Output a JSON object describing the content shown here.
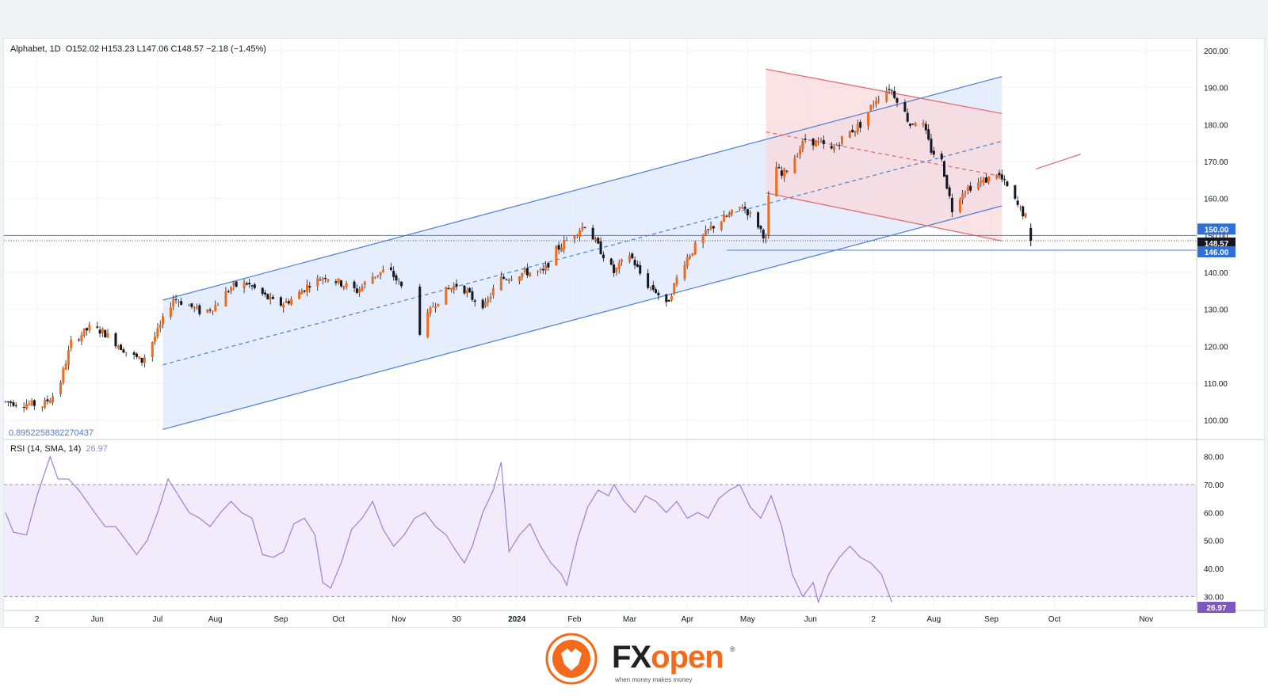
{
  "header": {
    "symbol": "Alphabet",
    "interval": "1D",
    "ohlc": "O152.02  H153.23  L147.06  C148.57  −2.18 (−1.45%)",
    "channel_label": "0.8952258382270437"
  },
  "rsi": {
    "title": "RSI (14, SMA, 14)",
    "value": "26.97",
    "upper": 70,
    "lower": 30,
    "ticks": [
      "80.00",
      "70.00",
      "60.00",
      "50.00",
      "40.00",
      "30.00"
    ]
  },
  "badges": {
    "level_150": "150.00",
    "price": "148.57",
    "level_146": "146.00",
    "rsi": "26.97"
  },
  "brand": {
    "name_a": "FX",
    "name_b": "open",
    "tagline": "when money makes money",
    "reg": "®"
  },
  "colors": {
    "bull": "#f26b1d",
    "bear": "#131722",
    "channel_blue": "#4a7fd4",
    "channel_red": "#e06470",
    "rsi_line": "#9b7fd6",
    "rsi_band": "#ede6fa"
  },
  "chart_data": {
    "type": "candlestick",
    "yaxis_ticks": [
      "200.00",
      "190.00",
      "180.00",
      "170.00",
      "160.00",
      "150.00",
      "140.00",
      "130.00",
      "120.00",
      "110.00",
      "100.00"
    ],
    "ylim": [
      95,
      201.5
    ],
    "xaxis_ticks": [
      "2",
      "Jun",
      "Jul",
      "Aug",
      "Sep",
      "Oct",
      "Nov",
      "30",
      "2024",
      "Feb",
      "Mar",
      "Apr",
      "May",
      "Jun",
      "2",
      "Aug",
      "Sep",
      "Oct",
      "Nov"
    ],
    "last": {
      "open": 152.02,
      "high": 153.23,
      "low": 147.06,
      "close": 148.57
    },
    "price_path": [
      [
        0,
        105
      ],
      [
        14,
        104
      ],
      [
        20,
        108
      ],
      [
        25,
        121
      ],
      [
        32,
        125
      ],
      [
        37,
        124
      ],
      [
        42,
        121
      ],
      [
        47,
        118
      ],
      [
        52,
        116
      ],
      [
        58,
        124
      ],
      [
        64,
        133
      ],
      [
        70,
        131
      ],
      [
        75,
        129
      ],
      [
        80,
        131
      ],
      [
        86,
        136
      ],
      [
        92,
        137
      ],
      [
        98,
        134
      ],
      [
        104,
        131
      ],
      [
        110,
        133
      ],
      [
        116,
        137
      ],
      [
        122,
        139
      ],
      [
        128,
        137
      ],
      [
        134,
        135
      ],
      [
        140,
        139
      ],
      [
        146,
        141
      ],
      [
        152,
        135
      ],
      [
        158,
        124
      ],
      [
        163,
        131
      ],
      [
        168,
        135
      ],
      [
        173,
        137
      ],
      [
        178,
        133
      ],
      [
        183,
        131
      ],
      [
        188,
        138
      ],
      [
        193,
        139
      ],
      [
        198,
        140
      ],
      [
        205,
        140
      ],
      [
        210,
        146
      ],
      [
        216,
        150
      ],
      [
        221,
        153
      ],
      [
        226,
        147
      ],
      [
        232,
        140
      ],
      [
        238,
        145
      ],
      [
        244,
        137
      ],
      [
        248,
        135
      ],
      [
        252,
        131
      ],
      [
        258,
        142
      ],
      [
        264,
        148
      ],
      [
        269,
        152
      ],
      [
        275,
        155
      ],
      [
        281,
        158
      ],
      [
        286,
        154
      ],
      [
        290,
        149
      ],
      [
        292,
        171
      ],
      [
        296,
        166
      ],
      [
        300,
        170
      ],
      [
        305,
        176
      ],
      [
        310,
        175
      ],
      [
        315,
        173
      ],
      [
        320,
        177
      ],
      [
        326,
        180
      ],
      [
        332,
        187
      ],
      [
        337,
        190
      ],
      [
        341,
        186
      ],
      [
        345,
        180
      ],
      [
        349,
        182
      ],
      [
        353,
        173
      ],
      [
        357,
        170
      ],
      [
        361,
        157
      ],
      [
        365,
        162
      ],
      [
        370,
        164
      ],
      [
        374,
        165
      ],
      [
        378,
        167
      ],
      [
        382,
        163
      ],
      [
        386,
        158
      ],
      [
        389,
        155
      ],
      [
        391,
        149
      ]
    ],
    "rsi_path": [
      [
        0,
        60
      ],
      [
        3,
        53
      ],
      [
        8,
        52
      ],
      [
        12,
        66
      ],
      [
        17,
        80
      ],
      [
        20,
        72
      ],
      [
        24,
        72
      ],
      [
        28,
        68
      ],
      [
        34,
        60
      ],
      [
        38,
        55
      ],
      [
        42,
        55
      ],
      [
        46,
        50
      ],
      [
        50,
        45
      ],
      [
        54,
        50
      ],
      [
        58,
        60
      ],
      [
        62,
        72
      ],
      [
        66,
        66
      ],
      [
        70,
        60
      ],
      [
        74,
        58
      ],
      [
        78,
        55
      ],
      [
        82,
        60
      ],
      [
        86,
        64
      ],
      [
        90,
        60
      ],
      [
        94,
        58
      ],
      [
        98,
        45
      ],
      [
        102,
        44
      ],
      [
        106,
        46
      ],
      [
        110,
        56
      ],
      [
        114,
        58
      ],
      [
        118,
        52
      ],
      [
        121,
        35
      ],
      [
        124,
        33
      ],
      [
        128,
        42
      ],
      [
        132,
        54
      ],
      [
        136,
        58
      ],
      [
        140,
        64
      ],
      [
        144,
        54
      ],
      [
        148,
        48
      ],
      [
        152,
        52
      ],
      [
        156,
        58
      ],
      [
        160,
        60
      ],
      [
        164,
        55
      ],
      [
        168,
        52
      ],
      [
        172,
        46
      ],
      [
        175,
        42
      ],
      [
        178,
        48
      ],
      [
        182,
        60
      ],
      [
        186,
        68
      ],
      [
        189,
        78
      ],
      [
        192,
        46
      ],
      [
        196,
        52
      ],
      [
        200,
        56
      ],
      [
        204,
        48
      ],
      [
        208,
        42
      ],
      [
        212,
        38
      ],
      [
        214,
        34
      ],
      [
        218,
        50
      ],
      [
        222,
        62
      ],
      [
        226,
        68
      ],
      [
        230,
        66
      ],
      [
        232,
        70
      ],
      [
        236,
        64
      ],
      [
        240,
        60
      ],
      [
        244,
        66
      ],
      [
        248,
        64
      ],
      [
        252,
        60
      ],
      [
        256,
        64
      ],
      [
        260,
        58
      ],
      [
        264,
        60
      ],
      [
        268,
        58
      ],
      [
        272,
        65
      ],
      [
        276,
        68
      ],
      [
        280,
        70
      ],
      [
        284,
        62
      ],
      [
        288,
        58
      ],
      [
        292,
        66
      ],
      [
        296,
        55
      ],
      [
        300,
        38
      ],
      [
        304,
        30
      ],
      [
        308,
        35
      ],
      [
        310,
        28
      ],
      [
        314,
        38
      ],
      [
        318,
        44
      ],
      [
        322,
        48
      ],
      [
        326,
        44
      ],
      [
        330,
        42
      ],
      [
        334,
        38
      ],
      [
        338,
        28
      ]
    ],
    "channels": {
      "blue_upper": [
        [
          60,
          132.5
        ],
        [
          380,
          193
        ]
      ],
      "blue_lower": [
        [
          60,
          97.5
        ],
        [
          380,
          158
        ]
      ],
      "blue_mid": [
        [
          60,
          115
        ],
        [
          380,
          175.5
        ]
      ],
      "red_upper": [
        [
          290,
          195
        ],
        [
          380,
          183
        ]
      ],
      "red_lower": [
        [
          290,
          161.5
        ],
        [
          380,
          148.5
        ]
      ],
      "red_mid": [
        [
          290,
          178
        ],
        [
          380,
          166
        ]
      ]
    },
    "levels": [
      150,
      146
    ]
  }
}
